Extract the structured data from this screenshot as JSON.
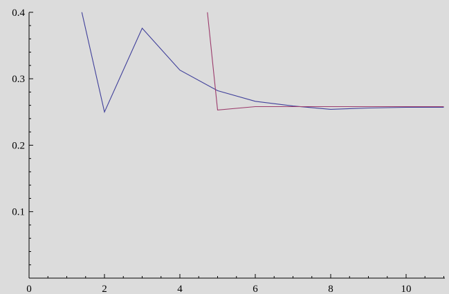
{
  "chart_data": {
    "type": "line",
    "title": "",
    "xlabel": "",
    "ylabel": "",
    "xlim": [
      0,
      11
    ],
    "ylim": [
      0,
      0.4
    ],
    "grid": false,
    "x_ticks": [
      0,
      2,
      4,
      6,
      8,
      10
    ],
    "x_tick_labels": [
      "0",
      "2",
      "4",
      "6",
      "8",
      "10"
    ],
    "y_ticks": [
      0.1,
      0.2,
      0.3,
      0.4
    ],
    "y_tick_labels": [
      "0.1",
      "0.2",
      "0.3",
      "0.4"
    ],
    "series": [
      {
        "color": "#3f3f9a",
        "points": [
          [
            1.4,
            0.4
          ],
          [
            2,
            0.25
          ],
          [
            3,
            0.376
          ],
          [
            4,
            0.313
          ],
          [
            5,
            0.282
          ],
          [
            6,
            0.266
          ],
          [
            7,
            0.259
          ],
          [
            8,
            0.254
          ],
          [
            9,
            0.256
          ],
          [
            10,
            0.257
          ],
          [
            11,
            0.257
          ]
        ]
      },
      {
        "color": "#9b3a6b",
        "points": [
          [
            4.73,
            0.4
          ],
          [
            5,
            0.253
          ],
          [
            6,
            0.258
          ],
          [
            7,
            0.258
          ],
          [
            8,
            0.258
          ],
          [
            9,
            0.258
          ],
          [
            10,
            0.258
          ],
          [
            11,
            0.258
          ]
        ]
      }
    ]
  }
}
